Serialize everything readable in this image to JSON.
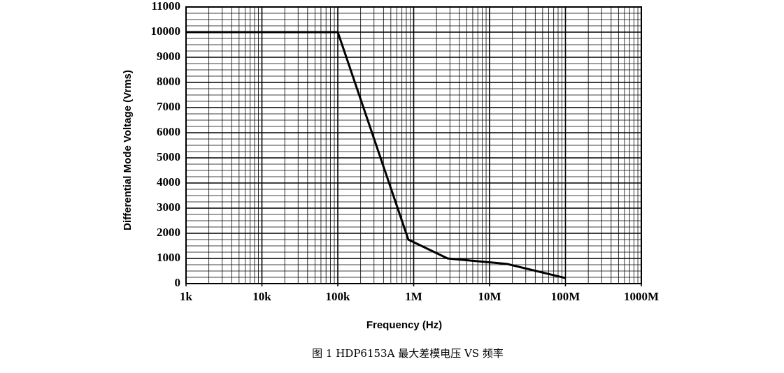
{
  "chart_data": {
    "type": "line",
    "caption": "图 1 HDP6153A 最大差模电压 VS 频率",
    "x_label": "Frequency (Hz)",
    "y_label": "Differential Mode Voltage (Vrms)",
    "x": [
      1000,
      100000,
      850000,
      2800000,
      17000000,
      100000000
    ],
    "series": [
      {
        "color": "#000000",
        "values": [
          10000,
          10000,
          1750,
          1000,
          780,
          220
        ]
      }
    ],
    "xscale": "log",
    "xlim": [
      1000,
      1000000000
    ],
    "xticks": [
      {
        "value": 1000,
        "label": "1k"
      },
      {
        "value": 10000,
        "label": "10k"
      },
      {
        "value": 100000,
        "label": "100k"
      },
      {
        "value": 1000000,
        "label": "1M"
      },
      {
        "value": 10000000,
        "label": "10M"
      },
      {
        "value": 100000000,
        "label": "100M"
      },
      {
        "value": 1000000000,
        "label": "1000M"
      }
    ],
    "ylim": [
      0,
      11000
    ],
    "yticks": [
      0,
      1000,
      2000,
      3000,
      4000,
      5000,
      6000,
      7000,
      8000,
      9000,
      10000,
      11000
    ],
    "grid": true
  }
}
